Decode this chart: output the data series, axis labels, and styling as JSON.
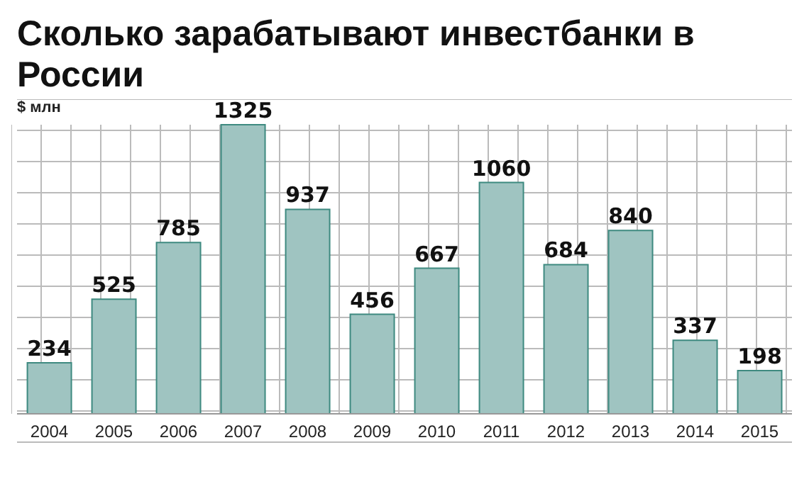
{
  "chart_data": {
    "type": "bar",
    "title": "Сколько зарабатывают инвестбанки в России",
    "ylabel": "$ млн",
    "categories": [
      "2004",
      "2005",
      "2006",
      "2007",
      "2008",
      "2009",
      "2010",
      "2011",
      "2012",
      "2013",
      "2014",
      "2015"
    ],
    "values": [
      234,
      525,
      785,
      1325,
      937,
      456,
      667,
      1060,
      684,
      840,
      337,
      198
    ],
    "color": "#9fc4c1",
    "data_labels": true,
    "grid": true
  }
}
